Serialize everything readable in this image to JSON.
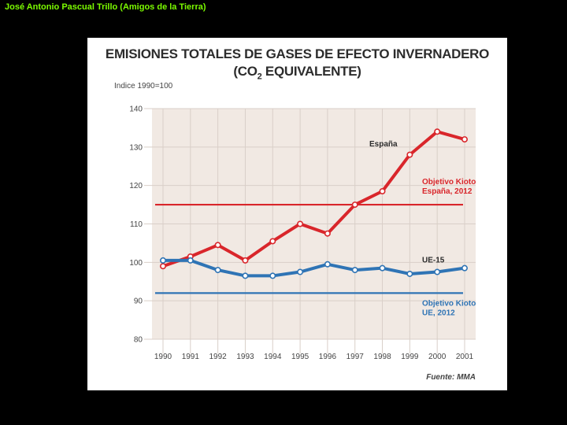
{
  "caption": "José Antonio Pascual Trillo (Amigos de la Tierra)",
  "colors": {
    "spain": "#d9262b",
    "eu": "#2f74b5",
    "plot_bg": "#f1e9e3",
    "grid": "#d9cfc8",
    "axis_text": "#444444"
  },
  "chart_data": {
    "type": "line",
    "title": "EMISIONES TOTALES DE GASES DE EFECTO INVERNADERO",
    "subtitle_prefix": "(CO",
    "subtitle_sub": "2",
    "subtitle_suffix": " EQUIVALENTE)",
    "ylabel": "Indice 1990=100",
    "xlabel": "",
    "ylim": [
      80,
      140
    ],
    "yticks": [
      80,
      90,
      100,
      110,
      120,
      130,
      140
    ],
    "categories": [
      "1990",
      "1991",
      "1992",
      "1993",
      "1994",
      "1995",
      "1996",
      "1997",
      "1998",
      "1999",
      "2000",
      "2001"
    ],
    "series": [
      {
        "name": "España",
        "color": "#d9262b",
        "values": [
          99,
          101.5,
          104.5,
          100.5,
          105.5,
          110,
          107.5,
          115,
          118.5,
          128,
          134,
          132
        ]
      },
      {
        "name": "UE-15",
        "color": "#2f74b5",
        "values": [
          100.5,
          100.5,
          98,
          96.5,
          96.5,
          97.5,
          99.5,
          98,
          98.5,
          97,
          97.5,
          98.5
        ]
      }
    ],
    "reference_lines": [
      {
        "name": "Objetivo Kioto España, 2012",
        "label_line1": "Objetivo Kioto",
        "label_line2": "España, 2012",
        "value": 115,
        "color": "#d9262b"
      },
      {
        "name": "Objetivo Kioto UE, 2012",
        "label_line1": "Objetivo Kioto",
        "label_line2": "UE, 2012",
        "value": 92,
        "color": "#2f74b5"
      }
    ],
    "source": "Fuente: MMA"
  }
}
